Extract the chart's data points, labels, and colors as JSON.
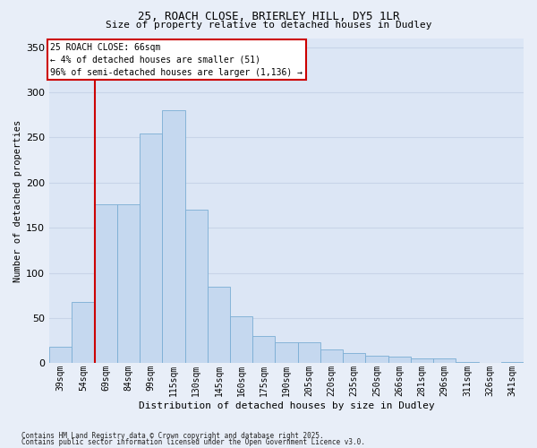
{
  "title1": "25, ROACH CLOSE, BRIERLEY HILL, DY5 1LR",
  "title2": "Size of property relative to detached houses in Dudley",
  "xlabel": "Distribution of detached houses by size in Dudley",
  "ylabel": "Number of detached properties",
  "categories": [
    "39sqm",
    "54sqm",
    "69sqm",
    "84sqm",
    "99sqm",
    "115sqm",
    "130sqm",
    "145sqm",
    "160sqm",
    "175sqm",
    "190sqm",
    "205sqm",
    "220sqm",
    "235sqm",
    "250sqm",
    "266sqm",
    "281sqm",
    "296sqm",
    "311sqm",
    "326sqm",
    "341sqm"
  ],
  "values": [
    18,
    68,
    176,
    176,
    254,
    280,
    170,
    85,
    52,
    30,
    23,
    23,
    15,
    11,
    8,
    7,
    5,
    5,
    1,
    0,
    1
  ],
  "bar_color": "#c5d8ef",
  "bar_edge_color": "#7aadd4",
  "vline_color": "#cc0000",
  "annotation_title": "25 ROACH CLOSE: 66sqm",
  "annotation_line2": "← 4% of detached houses are smaller (51)",
  "annotation_line3": "96% of semi-detached houses are larger (1,136) →",
  "ylim": [
    0,
    360
  ],
  "yticks": [
    0,
    50,
    100,
    150,
    200,
    250,
    300,
    350
  ],
  "grid_color": "#c8d4e8",
  "fig_bg_color": "#e8eef8",
  "plot_bg_color": "#dce6f5",
  "footer1": "Contains HM Land Registry data © Crown copyright and database right 2025.",
  "footer2": "Contains public sector information licensed under the Open Government Licence v3.0."
}
